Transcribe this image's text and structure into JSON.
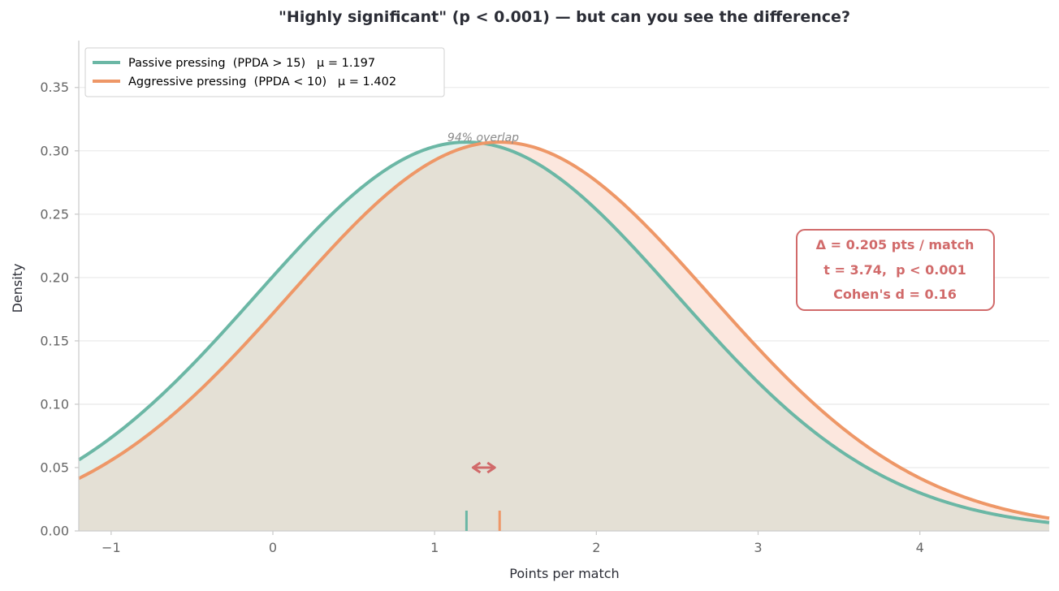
{
  "chart_data": {
    "type": "area",
    "title": "\"Highly significant\" (p < 0.001) — but can you see the difference?",
    "xlabel": "Points per match",
    "ylabel": "Density",
    "xlim": [
      -1.2,
      4.8
    ],
    "ylim": [
      0,
      0.387
    ],
    "x_ticks": [
      -1,
      0,
      1,
      2,
      3,
      4
    ],
    "x_tick_labels": [
      "−1",
      "0",
      "1",
      "2",
      "3",
      "4"
    ],
    "y_ticks": [
      0,
      0.05,
      0.1,
      0.15,
      0.2,
      0.25,
      0.3,
      0.35
    ],
    "y_tick_labels": [
      "0.00",
      "0.05",
      "0.10",
      "0.15",
      "0.20",
      "0.25",
      "0.30",
      "0.35"
    ],
    "grid": "horizontal",
    "legend_position": "top-left",
    "series": [
      {
        "name": "Passive pressing  (PPDA > 15)   μ = 1.197",
        "mean": 1.197,
        "sd": 1.3,
        "color": "#6bb7a5",
        "fill": "#e2f1ec"
      },
      {
        "name": "Aggressive pressing  (PPDA < 10)   μ = 1.402",
        "mean": 1.402,
        "sd": 1.3,
        "color": "#ee9767",
        "fill": "#fce7de"
      }
    ],
    "overlap_fill": "#e4e0d5",
    "overlap_label": "94% overlap",
    "mean_markers": [
      1.197,
      1.402
    ],
    "difference_arrow": {
      "y": 0.05,
      "from": 1.197,
      "to": 1.402,
      "color": "#d16a6a"
    },
    "annotation": {
      "lines": [
        "Δ = 0.205 pts / match",
        "t = 3.74,  p < 0.001",
        "Cohen's d = 0.16"
      ],
      "color": "#d16a6a"
    }
  }
}
